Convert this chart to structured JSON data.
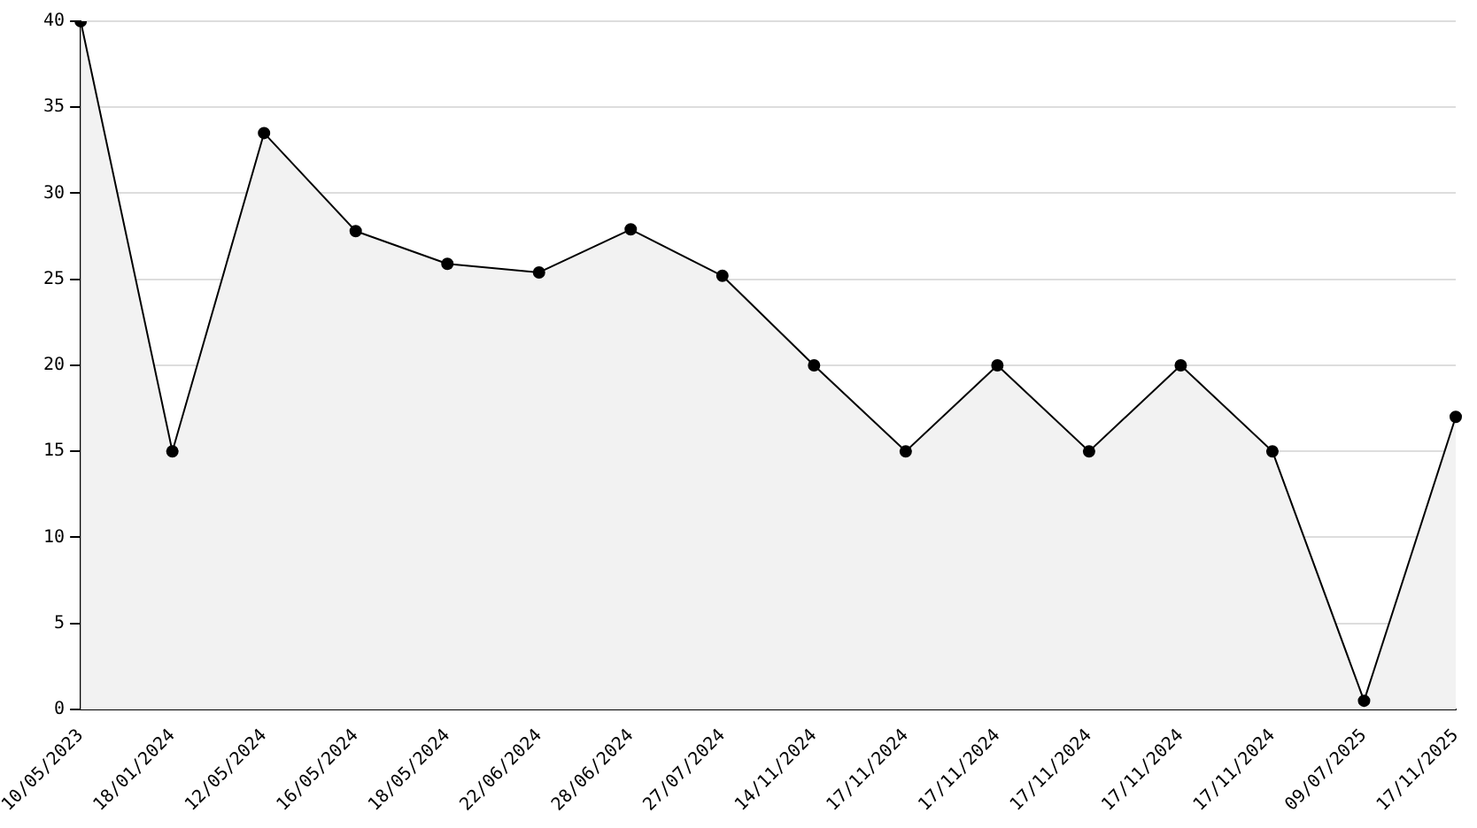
{
  "chart_data": {
    "type": "area",
    "categories": [
      "10/05/2023",
      "18/01/2024",
      "12/05/2024",
      "16/05/2024",
      "18/05/2024",
      "22/06/2024",
      "28/06/2024",
      "27/07/2024",
      "14/11/2024",
      "17/11/2024",
      "17/11/2024",
      "17/11/2024",
      "17/11/2024",
      "17/11/2024",
      "09/07/2025",
      "17/11/2025"
    ],
    "series": [
      {
        "color": "#000000",
        "values": [
          40,
          15,
          33.5,
          27.8,
          25.9,
          25.4,
          27.9,
          25.2,
          20,
          15,
          20,
          15,
          20,
          15,
          0.5,
          17
        ]
      }
    ],
    "ylim": [
      0,
      40
    ],
    "yticks": [
      0,
      5,
      10,
      15,
      20,
      25,
      30,
      35,
      40
    ],
    "grid": "y",
    "legend": false,
    "marker": "circle",
    "line_style": "solid"
  }
}
